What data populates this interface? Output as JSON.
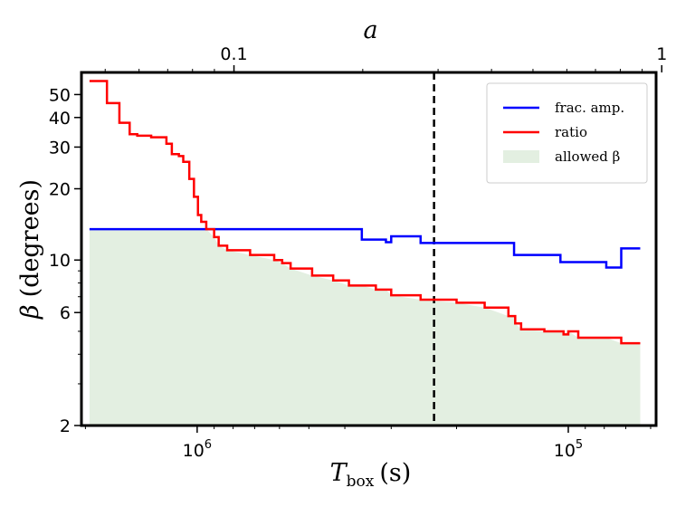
{
  "chart_data": {
    "type": "line",
    "title": "",
    "xlabel": "T",
    "xlabel_sub": "box",
    "xlabel_unit": "(s)",
    "ylabel_symbol": "β",
    "ylabel_unit": "(degrees)",
    "top_xlabel": "a",
    "x_scale": "log",
    "x_inverted": true,
    "xlim": [
      2050000,
      58000
    ],
    "y_scale": "log",
    "ylim": [
      2,
      62
    ],
    "yticks": [
      2,
      6,
      10,
      20,
      30,
      40,
      50
    ],
    "ytick_labels": [
      "2",
      "6",
      "10",
      "20",
      "30",
      "40",
      "50"
    ],
    "xticks_major": [
      1000000,
      100000
    ],
    "xtick_labels": [
      {
        "base": "10",
        "exp": "6"
      },
      {
        "base": "10",
        "exp": "5"
      }
    ],
    "top_xlim": [
      0.044,
      0.97
    ],
    "top_xticks": [
      0.1,
      1
    ],
    "top_xtick_labels": [
      "0.1",
      "1"
    ],
    "vline_x": 230000,
    "legend_position": "top-right",
    "legend": [
      "frac. amp.",
      "ratio",
      "allowed β"
    ],
    "series": [
      {
        "name": "frac. amp.",
        "color": "#0000ff",
        "style": "step",
        "points": [
          [
            1950000,
            13.5
          ],
          [
            360000,
            13.5
          ],
          [
            360000,
            12.2
          ],
          [
            310000,
            12.2
          ],
          [
            310000,
            11.9
          ],
          [
            300000,
            11.9
          ],
          [
            300000,
            12.6
          ],
          [
            250000,
            12.6
          ],
          [
            250000,
            11.8
          ],
          [
            140000,
            11.8
          ],
          [
            140000,
            10.5
          ],
          [
            105000,
            10.5
          ],
          [
            105000,
            9.8
          ],
          [
            79000,
            9.8
          ],
          [
            79000,
            9.3
          ],
          [
            72000,
            9.3
          ],
          [
            72000,
            11.2
          ],
          [
            64000,
            11.2
          ]
        ]
      },
      {
        "name": "ratio",
        "color": "#ff0000",
        "style": "step",
        "points": [
          [
            1950000,
            57
          ],
          [
            1750000,
            57
          ],
          [
            1750000,
            46
          ],
          [
            1620000,
            46
          ],
          [
            1620000,
            38
          ],
          [
            1520000,
            38
          ],
          [
            1520000,
            34
          ],
          [
            1450000,
            34
          ],
          [
            1450000,
            33.5
          ],
          [
            1330000,
            33.5
          ],
          [
            1330000,
            33
          ],
          [
            1210000,
            33
          ],
          [
            1210000,
            31
          ],
          [
            1170000,
            31
          ],
          [
            1170000,
            28
          ],
          [
            1120000,
            28
          ],
          [
            1120000,
            27.5
          ],
          [
            1090000,
            27.5
          ],
          [
            1090000,
            26
          ],
          [
            1050000,
            26
          ],
          [
            1050000,
            22
          ],
          [
            1020000,
            22
          ],
          [
            1020000,
            18.5
          ],
          [
            995000,
            18.5
          ],
          [
            995000,
            15.5
          ],
          [
            975000,
            15.5
          ],
          [
            975000,
            14.5
          ],
          [
            945000,
            14.5
          ],
          [
            945000,
            13.5
          ],
          [
            900000,
            13.5
          ],
          [
            900000,
            12.5
          ],
          [
            875000,
            12.5
          ],
          [
            875000,
            11.5
          ],
          [
            830000,
            11.5
          ],
          [
            830000,
            11
          ],
          [
            720000,
            11
          ],
          [
            720000,
            10.5
          ],
          [
            620000,
            10.5
          ],
          [
            620000,
            10
          ],
          [
            590000,
            10
          ],
          [
            590000,
            9.7
          ],
          [
            560000,
            9.7
          ],
          [
            560000,
            9.2
          ],
          [
            490000,
            9.2
          ],
          [
            490000,
            8.6
          ],
          [
            430000,
            8.6
          ],
          [
            430000,
            8.2
          ],
          [
            390000,
            8.2
          ],
          [
            390000,
            7.8
          ],
          [
            330000,
            7.8
          ],
          [
            330000,
            7.5
          ],
          [
            300000,
            7.5
          ],
          [
            300000,
            7.1
          ],
          [
            250000,
            7.1
          ],
          [
            250000,
            6.8
          ],
          [
            200000,
            6.8
          ],
          [
            200000,
            6.6
          ],
          [
            168000,
            6.6
          ],
          [
            168000,
            6.3
          ],
          [
            145000,
            6.3
          ],
          [
            145000,
            5.8
          ],
          [
            139000,
            5.8
          ],
          [
            139000,
            5.4
          ],
          [
            134000,
            5.4
          ],
          [
            134000,
            5.1
          ],
          [
            116000,
            5.1
          ],
          [
            116000,
            5.0
          ],
          [
            103000,
            5.0
          ],
          [
            103000,
            4.85
          ],
          [
            100000,
            4.85
          ],
          [
            100000,
            5.0
          ],
          [
            94000,
            5.0
          ],
          [
            94000,
            4.7
          ],
          [
            72000,
            4.7
          ],
          [
            72000,
            4.45
          ],
          [
            64000,
            4.45
          ]
        ]
      }
    ],
    "fill": {
      "name": "allowed β",
      "color": "#e3efe1",
      "x_range": [
        1950000,
        64000
      ],
      "y_floor": 2,
      "note": "upper edge = min(frac. amp., ratio)"
    }
  }
}
